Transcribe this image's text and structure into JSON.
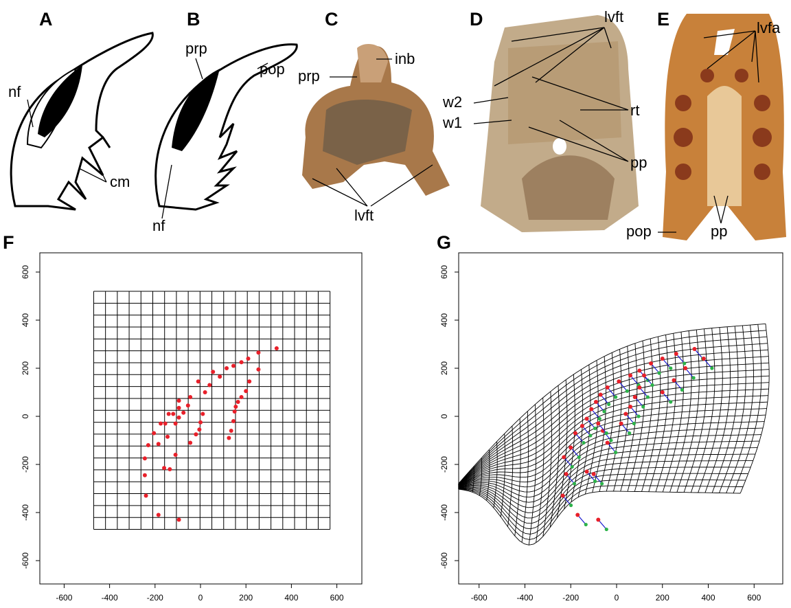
{
  "panel_labels": [
    "A",
    "B",
    "C",
    "D",
    "E",
    "F",
    "G"
  ],
  "annotations": {
    "A": [
      "nf",
      "cm"
    ],
    "B": [
      "prp",
      "pop",
      "nf"
    ],
    "C": [
      "inb",
      "prp",
      "lvft"
    ],
    "D": [
      "lvft",
      "w2",
      "w1",
      "rt",
      "pp"
    ],
    "E": [
      "lvfa",
      "pop",
      "pp"
    ]
  },
  "chart_data": [
    {
      "type": "scatter",
      "xlim": [
        -707,
        710
      ],
      "ylim": [
        -697,
        680
      ],
      "xticks": [
        -600,
        -400,
        -200,
        0,
        200,
        400,
        600
      ],
      "yticks": [
        -600,
        -400,
        -200,
        0,
        200,
        400,
        600
      ],
      "reference_grid": {
        "xlim": [
          -470,
          570
        ],
        "ylim": [
          -470,
          520
        ],
        "cells": 20
      },
      "series": [
        {
          "color": "#e8202a",
          "x": [
            -245,
            -240,
            -245,
            -230,
            -205,
            -185,
            -175,
            -155,
            -140,
            -145,
            -120,
            -110,
            -110,
            -95,
            -95,
            -95,
            -75,
            -55,
            -45,
            -45,
            -20,
            -5,
            0,
            10,
            20,
            -10,
            40,
            55,
            85,
            115,
            145,
            180,
            210,
            255,
            335,
            255,
            215,
            200,
            180,
            165,
            155,
            150,
            145,
            135,
            125,
            -160,
            -135,
            -185,
            -95
          ],
          "values": [
            -245,
            -330,
            -175,
            -120,
            -70,
            -115,
            -30,
            -30,
            10,
            -85,
            10,
            -30,
            -160,
            -5,
            35,
            65,
            15,
            45,
            80,
            -110,
            -75,
            -55,
            -25,
            10,
            100,
            145,
            130,
            185,
            165,
            200,
            210,
            225,
            240,
            265,
            283,
            195,
            145,
            105,
            80,
            60,
            40,
            20,
            -20,
            -60,
            -90,
            -215,
            -220,
            -410,
            -430
          ]
        }
      ]
    },
    {
      "type": "scatter",
      "xlim": [
        -689,
        725
      ],
      "ylim": [
        -697,
        680
      ],
      "xticks": [
        -600,
        -400,
        -200,
        0,
        200,
        400,
        600
      ],
      "yticks": [
        -600,
        -400,
        -200,
        0,
        200,
        400,
        600
      ],
      "series": [
        {
          "color": "#e8202a",
          "x": [
            -230,
            -220,
            -235,
            -200,
            -180,
            -150,
            -130,
            -110,
            -90,
            -70,
            -40,
            10,
            60,
            100,
            150,
            200,
            260,
            340,
            380,
            120,
            100,
            80,
            60,
            40,
            20,
            -40,
            -60,
            -80,
            -130,
            -100,
            -170,
            -80,
            300,
            250,
            200
          ],
          "values": [
            -170,
            -240,
            -330,
            -130,
            -70,
            -40,
            -10,
            30,
            60,
            90,
            120,
            145,
            170,
            190,
            220,
            240,
            260,
            280,
            240,
            170,
            120,
            80,
            40,
            10,
            -30,
            -110,
            -60,
            -30,
            -230,
            -240,
            -410,
            -430,
            200,
            150,
            100
          ]
        }
      ]
    }
  ]
}
